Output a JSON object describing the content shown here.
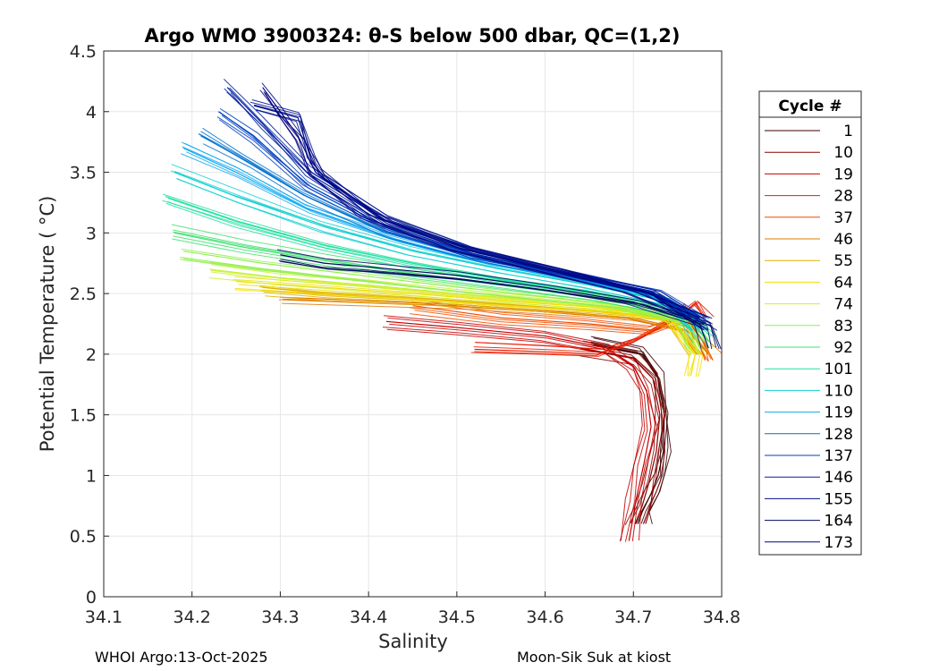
{
  "chart_data": {
    "type": "line",
    "title": "Argo WMO 3900324: θ-S below 500 dbar,  QC=(1,2)",
    "xlabel": "Salinity",
    "ylabel": "Potential Temperature ( °C)",
    "xlim": [
      34.1,
      34.8
    ],
    "ylim": [
      0,
      4.5
    ],
    "xticks": [
      "34.1",
      "34.2",
      "34.3",
      "34.4",
      "34.5",
      "34.6",
      "34.7",
      "34.8"
    ],
    "yticks": [
      "0",
      "0.5",
      "1",
      "1.5",
      "2",
      "2.5",
      "3",
      "3.5",
      "4",
      "4.5"
    ],
    "grid": true,
    "legend": {
      "title": "Cycle #",
      "placement": "right-outside",
      "entries": [
        "1",
        "10",
        "19",
        "28",
        "37",
        "46",
        "55",
        "64",
        "74",
        "83",
        "92",
        "101",
        "110",
        "119",
        "128",
        "137",
        "146",
        "155",
        "164",
        "173"
      ],
      "colors": [
        "#3a0000",
        "#8b0000",
        "#c40000",
        "#e81b00",
        "#f04d00",
        "#e07800",
        "#e0b000",
        "#f0e000",
        "#c8f030",
        "#90f050",
        "#40e070",
        "#20e0a0",
        "#10d0d0",
        "#10a8f0",
        "#0070d0",
        "#0040c0",
        "#001ea0",
        "#00108a",
        "#000a60",
        "#000080"
      ]
    },
    "series": [
      {
        "name": "1",
        "x": [
          34.655,
          34.71,
          34.728,
          34.735,
          34.734,
          34.728,
          34.72,
          34.71,
          34.705
        ],
        "y": [
          2.08,
          2.0,
          1.8,
          1.5,
          1.2,
          1.0,
          0.85,
          0.7,
          0.6
        ]
      },
      {
        "name": "10",
        "x": [
          34.64,
          34.7,
          34.722,
          34.73,
          34.726,
          34.718,
          34.71,
          34.702
        ],
        "y": [
          2.05,
          1.97,
          1.8,
          1.5,
          1.2,
          0.95,
          0.75,
          0.6
        ]
      },
      {
        "name": "19",
        "x": [
          34.42,
          34.5,
          34.6,
          34.67,
          34.7,
          34.715,
          34.72,
          34.712,
          34.703,
          34.695
        ],
        "y": [
          2.27,
          2.22,
          2.15,
          2.05,
          1.9,
          1.7,
          1.4,
          1.1,
          0.8,
          0.46
        ]
      },
      {
        "name": "28",
        "x": [
          34.52,
          34.6,
          34.66,
          34.7,
          34.75,
          34.77,
          34.78
        ],
        "y": [
          2.04,
          2.02,
          2.0,
          2.1,
          2.3,
          2.42,
          2.3
        ]
      },
      {
        "name": "37",
        "x": [
          34.45,
          34.55,
          34.65,
          34.72,
          34.76,
          34.78,
          34.79
        ],
        "y": [
          2.4,
          2.3,
          2.25,
          2.2,
          2.3,
          2.1,
          1.95
        ]
      },
      {
        "name": "46",
        "x": [
          34.3,
          34.4,
          34.5,
          34.6,
          34.7,
          34.76,
          34.785
        ],
        "y": [
          2.47,
          2.44,
          2.41,
          2.36,
          2.3,
          2.2,
          2.0
        ]
      },
      {
        "name": "55",
        "x": [
          34.28,
          34.35,
          34.45,
          34.55,
          34.65,
          34.74,
          34.775
        ],
        "y": [
          2.55,
          2.5,
          2.46,
          2.41,
          2.36,
          2.3,
          2.0
        ]
      },
      {
        "name": "64",
        "x": [
          34.25,
          34.35,
          34.45,
          34.55,
          34.65,
          34.74,
          34.77,
          34.765
        ],
        "y": [
          2.6,
          2.55,
          2.5,
          2.44,
          2.39,
          2.3,
          2.0,
          1.82
        ]
      },
      {
        "name": "74",
        "x": [
          34.22,
          34.3,
          34.4,
          34.5,
          34.6,
          34.7,
          34.76,
          34.775
        ],
        "y": [
          2.7,
          2.63,
          2.57,
          2.5,
          2.44,
          2.37,
          2.25,
          2.0
        ]
      },
      {
        "name": "83",
        "x": [
          34.19,
          34.28,
          34.38,
          34.48,
          34.58,
          34.68,
          34.76,
          34.775
        ],
        "y": [
          2.85,
          2.75,
          2.66,
          2.57,
          2.49,
          2.41,
          2.28,
          2.05
        ]
      },
      {
        "name": "92",
        "x": [
          34.18,
          34.26,
          34.36,
          34.46,
          34.56,
          34.66,
          34.76,
          34.78
        ],
        "y": [
          3.0,
          2.88,
          2.76,
          2.65,
          2.56,
          2.46,
          2.32,
          2.1
        ]
      },
      {
        "name": "101",
        "x": [
          34.17,
          34.25,
          34.35,
          34.45,
          34.55,
          34.65,
          34.75,
          34.78
        ],
        "y": [
          3.3,
          3.1,
          2.9,
          2.75,
          2.62,
          2.52,
          2.38,
          2.15
        ]
      },
      {
        "name": "110",
        "x": [
          34.18,
          34.25,
          34.35,
          34.45,
          34.55,
          34.65,
          34.74,
          34.775
        ],
        "y": [
          3.5,
          3.3,
          3.05,
          2.85,
          2.7,
          2.57,
          2.43,
          2.2
        ]
      },
      {
        "name": "119",
        "x": [
          34.19,
          34.25,
          34.33,
          34.43,
          34.53,
          34.63,
          34.73,
          34.775
        ],
        "y": [
          3.7,
          3.5,
          3.2,
          2.95,
          2.76,
          2.62,
          2.47,
          2.25
        ]
      },
      {
        "name": "128",
        "x": [
          34.21,
          34.26,
          34.33,
          34.42,
          34.52,
          34.62,
          34.72,
          34.775
        ],
        "y": [
          3.8,
          3.6,
          3.3,
          3.0,
          2.8,
          2.65,
          2.5,
          2.3
        ]
      },
      {
        "name": "137",
        "x": [
          34.23,
          34.27,
          34.33,
          34.42,
          34.52,
          34.62,
          34.72,
          34.775
        ],
        "y": [
          4.0,
          3.8,
          3.4,
          3.05,
          2.82,
          2.67,
          2.52,
          2.3
        ]
      },
      {
        "name": "146",
        "x": [
          34.24,
          34.28,
          34.33,
          34.42,
          34.52,
          34.62,
          34.72,
          34.78
        ],
        "y": [
          4.2,
          3.9,
          3.5,
          3.1,
          2.85,
          2.68,
          2.52,
          2.25
        ]
      },
      {
        "name": "155",
        "x": [
          34.27,
          34.32,
          34.335,
          34.35,
          34.42,
          34.52,
          34.62,
          34.72,
          34.78
        ],
        "y": [
          4.05,
          3.95,
          3.6,
          3.45,
          3.1,
          2.85,
          2.68,
          2.5,
          2.2
        ]
      },
      {
        "name": "164",
        "x": [
          34.3,
          34.35,
          34.4,
          34.5,
          34.6,
          34.7,
          34.775,
          34.785
        ],
        "y": [
          2.82,
          2.75,
          2.72,
          2.65,
          2.55,
          2.43,
          2.25,
          2.05
        ]
      },
      {
        "name": "173",
        "x": [
          34.28,
          34.3,
          34.32,
          34.34,
          34.4,
          34.5,
          34.6,
          34.7,
          34.775
        ],
        "y": [
          4.2,
          4.0,
          3.8,
          3.5,
          3.15,
          2.88,
          2.7,
          2.52,
          2.3
        ]
      }
    ]
  },
  "footer": {
    "left": "WHOI Argo:13-Oct-2025",
    "right": "Moon-Sik Suk at kiost"
  }
}
